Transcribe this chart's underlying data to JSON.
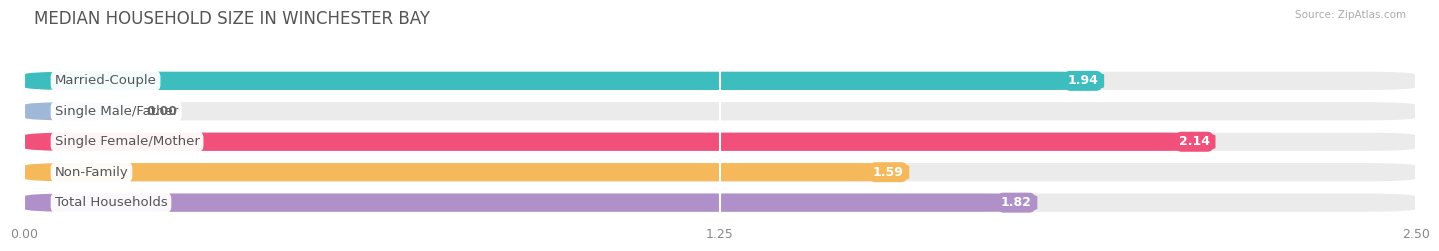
{
  "title": "MEDIAN HOUSEHOLD SIZE IN WINCHESTER BAY",
  "source": "Source: ZipAtlas.com",
  "categories": [
    "Married-Couple",
    "Single Male/Father",
    "Single Female/Mother",
    "Non-Family",
    "Total Households"
  ],
  "values": [
    1.94,
    0.0,
    2.14,
    1.59,
    1.82
  ],
  "bar_colors": [
    "#3dbdbd",
    "#a0b8d8",
    "#f0507a",
    "#f5b85a",
    "#b090c8"
  ],
  "bar_bg_color": "#ebebeb",
  "xlim": [
    0,
    2.5
  ],
  "xticks": [
    0.0,
    1.25,
    2.5
  ],
  "xtick_labels": [
    "0.00",
    "1.25",
    "2.50"
  ],
  "title_fontsize": 12,
  "label_fontsize": 9.5,
  "value_fontsize": 9,
  "background_color": "#ffffff",
  "label_text_color": "#555555",
  "value_text_color": "#ffffff"
}
